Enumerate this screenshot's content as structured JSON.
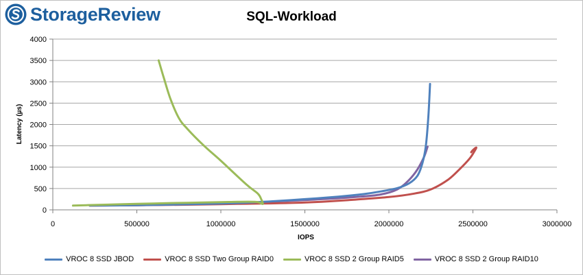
{
  "brand": {
    "name": "StorageReview",
    "icon": "storagereview-logo-icon",
    "color": "#1d5f9e"
  },
  "chart_data": {
    "type": "line",
    "title": "SQL-Workload",
    "xlabel": "IOPS",
    "ylabel": "Latency (µs)",
    "xlim": [
      0,
      3000000
    ],
    "ylim": [
      0,
      4000
    ],
    "x_ticks": [
      0,
      500000,
      1000000,
      1500000,
      2000000,
      2500000,
      3000000
    ],
    "x_tick_labels": [
      "0",
      "500000",
      "1000000",
      "1500000",
      "2000000",
      "2500000",
      "3000000"
    ],
    "y_ticks": [
      0,
      500,
      1000,
      1500,
      2000,
      2500,
      3000,
      3500,
      4000
    ],
    "y_tick_labels": [
      "0",
      "500",
      "1000",
      "1500",
      "2000",
      "2500",
      "3000",
      "3500",
      "4000"
    ],
    "grid": "horizontal",
    "legend_position": "bottom",
    "series": [
      {
        "name": "VROC 8 SSD JBOD",
        "color": "#4f81bd",
        "x": [
          220000,
          500000,
          800000,
          1100000,
          1300000,
          1500000,
          1700000,
          1850000,
          1950000,
          2050000,
          2120000,
          2170000,
          2200000,
          2220000,
          2235000,
          2245000
        ],
        "y": [
          100,
          110,
          130,
          160,
          200,
          250,
          310,
          370,
          430,
          510,
          620,
          800,
          1100,
          1500,
          2200,
          2950
        ]
      },
      {
        "name": "VROC 8 SSD Two Group RAID0",
        "color": "#c0504d",
        "x": [
          220000,
          500000,
          800000,
          1100000,
          1400000,
          1600000,
          1800000,
          2000000,
          2150000,
          2250000,
          2350000,
          2420000,
          2480000,
          2510000,
          2520000,
          2500000,
          2490000
        ],
        "y": [
          100,
          110,
          120,
          140,
          160,
          190,
          240,
          300,
          380,
          480,
          700,
          950,
          1200,
          1380,
          1460,
          1400,
          1350
        ]
      },
      {
        "name": "VROC 8 SSD 2 Group RAID5",
        "color": "#9bbb59",
        "x": [
          120000,
          200000,
          400000,
          600000,
          800000,
          1000000,
          1100000,
          1200000,
          1230000,
          1250000,
          1240000,
          1220000,
          1150000,
          1000000,
          900000,
          800000,
          750000,
          700000,
          660000,
          630000
        ],
        "y": [
          100,
          110,
          130,
          150,
          165,
          180,
          190,
          190,
          170,
          140,
          250,
          380,
          600,
          1150,
          1500,
          1900,
          2150,
          2600,
          3100,
          3500
        ]
      },
      {
        "name": "VROC 8 SSD 2 Group RAID10",
        "color": "#8064a2",
        "x": [
          220000,
          500000,
          800000,
          1100000,
          1400000,
          1600000,
          1800000,
          1950000,
          2050000,
          2120000,
          2170000,
          2210000,
          2230000
        ],
        "y": [
          100,
          110,
          130,
          160,
          210,
          250,
          300,
          360,
          480,
          700,
          950,
          1250,
          1480
        ]
      }
    ]
  }
}
